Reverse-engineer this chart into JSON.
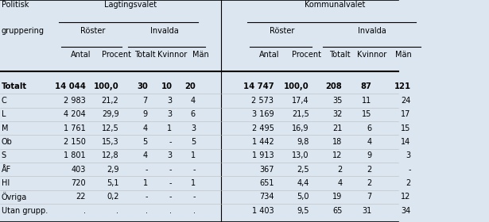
{
  "rows": [
    [
      "Totalt",
      "14 044",
      "100,0",
      "30",
      "10",
      "20",
      "14 747",
      "100,0",
      "208",
      "87",
      "121"
    ],
    [
      "C",
      "2 983",
      "21,2",
      "7",
      "3",
      "4",
      "2 573",
      "17,4",
      "35",
      "11",
      "24"
    ],
    [
      "L",
      "4 204",
      "29,9",
      "9",
      "3",
      "6",
      "3 169",
      "21,5",
      "32",
      "15",
      "17"
    ],
    [
      "M",
      "1 761",
      "12,5",
      "4",
      "1",
      "3",
      "2 495",
      "16,9",
      "21",
      "6",
      "15"
    ],
    [
      "Ob",
      "2 150",
      "15,3",
      "5",
      "-",
      "5",
      "1 442",
      "9,8",
      "18",
      "4",
      "14"
    ],
    [
      "S",
      "1 801",
      "12,8",
      "4",
      "3",
      "1",
      "1 913",
      "13,0",
      "12",
      "9",
      "3"
    ],
    [
      "ÅF",
      "403",
      "2,9",
      "-",
      "-",
      "-",
      "367",
      "2,5",
      "2",
      "2",
      "-"
    ],
    [
      "HI",
      "720",
      "5,1",
      "1",
      "-",
      "1",
      "651",
      "4,4",
      "4",
      "2",
      "2"
    ],
    [
      "Övriga",
      "22",
      "0,2",
      "-",
      "-",
      "-",
      "734",
      "5,0",
      "19",
      "7",
      "12"
    ],
    [
      "Utan grupp.",
      ".",
      ".",
      ".",
      ".",
      ".",
      "1 403",
      "9,5",
      "65",
      "31",
      "34"
    ]
  ],
  "bg_color": "#dce6f1",
  "font_size": 7.0,
  "header_font_size": 7.0
}
